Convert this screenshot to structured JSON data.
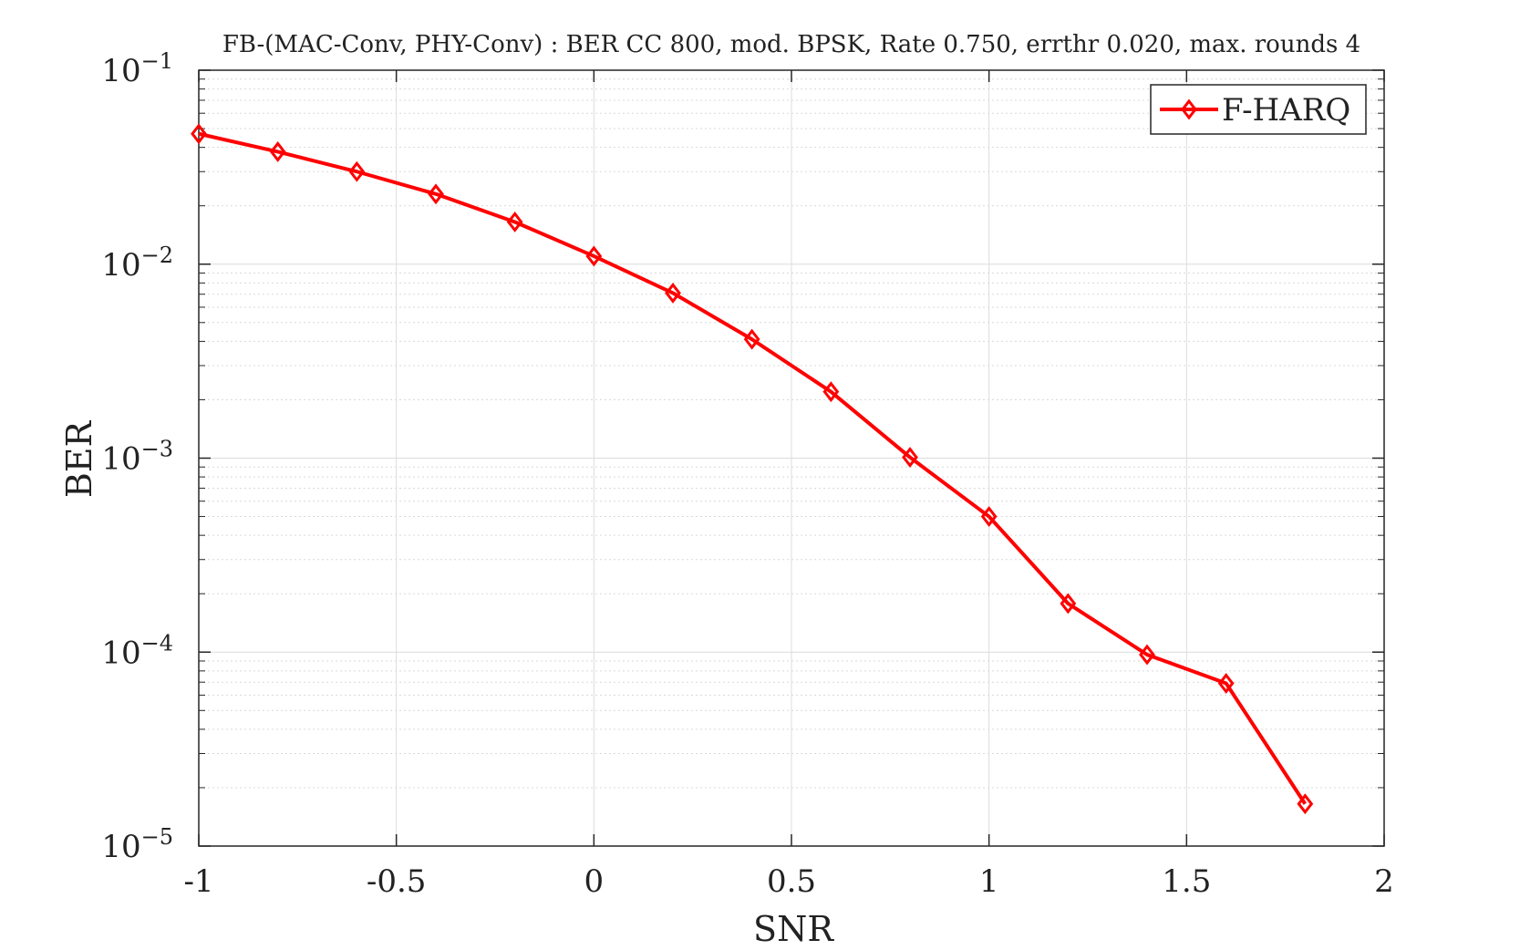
{
  "chart_data": {
    "type": "line",
    "title": "FB-(MAC-Conv, PHY-Conv) : BER CC 800, mod. BPSK, Rate 0.750, errthr 0.020, max. rounds 4",
    "xlabel": "SNR",
    "ylabel": "BER",
    "xlim": [
      -1,
      2
    ],
    "ylim": [
      1e-05,
      0.1
    ],
    "yscale": "log",
    "grid": true,
    "minor_grid": true,
    "legend_position": "top-right",
    "x_ticks": [
      "-1",
      "-0.5",
      "0",
      "0.5",
      "1",
      "1.5",
      "2"
    ],
    "y_ticks": [
      {
        "base": "10",
        "exp": "−5",
        "value": 1e-05
      },
      {
        "base": "10",
        "exp": "−4",
        "value": 0.0001
      },
      {
        "base": "10",
        "exp": "−3",
        "value": 0.001
      },
      {
        "base": "10",
        "exp": "−2",
        "value": 0.01
      },
      {
        "base": "10",
        "exp": "−1",
        "value": 0.1
      }
    ],
    "series": [
      {
        "name": "F-HARQ",
        "color": "#ff0000",
        "marker": "diamond",
        "x": [
          -1,
          -0.8,
          -0.6,
          -0.4,
          -0.2,
          0,
          0.2,
          0.4,
          0.6,
          0.8,
          1.0,
          1.2,
          1.4,
          1.6,
          1.8
        ],
        "y": [
          0.047,
          0.038,
          0.03,
          0.023,
          0.0165,
          0.011,
          0.0071,
          0.0041,
          0.0022,
          0.00101,
          0.0005,
          0.000178,
          9.7e-05,
          6.9e-05,
          1.65e-05
        ]
      }
    ]
  }
}
